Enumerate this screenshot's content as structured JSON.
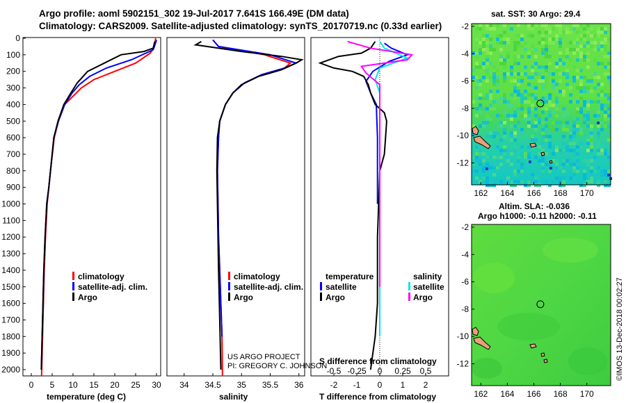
{
  "title": {
    "line1": "Argo profile: aoml 5902151_302 19-Jul-2017 7.641S 166.49E (DM data)",
    "line2": "Climatology: CARS2009. Satellite-adjusted climatology: synTS_20170719.nc (0.33d earlier)"
  },
  "colors": {
    "climatology": "#ff0000",
    "satellite": "#0000ff",
    "argo": "#000000",
    "sat_salinity": "#00e5ee",
    "salinity": "#ff00ff"
  },
  "chart_data": [
    {
      "type": "line",
      "id": "temperature",
      "xlabel": "temperature (deg C)",
      "ylabel": "",
      "xlim": [
        -2,
        31
      ],
      "ylim": [
        2100,
        0
      ],
      "xticks": [
        "0",
        "5",
        "10",
        "15",
        "20",
        "25",
        "30"
      ],
      "yticks": [
        "0",
        "100",
        "200",
        "300",
        "400",
        "500",
        "600",
        "700",
        "800",
        "900",
        "1000",
        "1100",
        "1200",
        "1300",
        "1400",
        "1500",
        "1600",
        "1700",
        "1800",
        "1900",
        "2000"
      ],
      "legend": [
        "climatology",
        "satellite-adj. clim.",
        "Argo"
      ],
      "series": [
        {
          "name": "climatology",
          "color": "#ff0000",
          "x": [
            29.8,
            29.5,
            28.5,
            25.0,
            20.0,
            15.0,
            12.0,
            10.0,
            8.0,
            6.5,
            5.5,
            4.6,
            4.2,
            3.8,
            3.4,
            3.1,
            2.9,
            2.7,
            2.6,
            2.5,
            2.4
          ],
          "y": [
            0,
            50,
            90,
            150,
            200,
            250,
            300,
            350,
            400,
            500,
            600,
            800,
            900,
            1000,
            1200,
            1400,
            1600,
            1800,
            1900,
            2000,
            2100
          ]
        },
        {
          "name": "satellite-adj. clim.",
          "color": "#0000ff",
          "x": [
            30.0,
            29.5,
            29.2,
            24.0,
            18.0,
            14.0,
            11.5,
            9.8,
            8.0,
            6.5,
            5.4,
            4.6,
            4.2,
            3.7,
            3.3,
            3.0,
            2.8,
            2.6,
            2.5,
            2.4
          ],
          "y": [
            10,
            50,
            70,
            130,
            180,
            230,
            280,
            330,
            400,
            500,
            600,
            800,
            900,
            1000,
            1200,
            1400,
            1600,
            1800,
            1900,
            2000
          ]
        },
        {
          "name": "Argo",
          "color": "#000000",
          "x": [
            29.6,
            29.2,
            27.0,
            21.5,
            17.5,
            13.5,
            11.0,
            9.5,
            7.8,
            6.4,
            5.4,
            4.6,
            4.2,
            3.7,
            3.3,
            3.0,
            2.8,
            2.6,
            2.5,
            2.4
          ],
          "y": [
            20,
            60,
            80,
            100,
            150,
            200,
            270,
            330,
            400,
            500,
            600,
            800,
            900,
            1000,
            1200,
            1400,
            1600,
            1800,
            1900,
            2000
          ]
        }
      ]
    },
    {
      "type": "line",
      "id": "salinity",
      "xlabel": "salinity",
      "xlim": [
        33.7,
        36.1
      ],
      "ylim": [
        2100,
        0
      ],
      "xticks": [
        "34",
        "34.5",
        "35",
        "35.5",
        "36"
      ],
      "legend": [
        "climatology",
        "satellite-adj. clim.",
        "Argo"
      ],
      "series": [
        {
          "name": "climatology",
          "color": "#ff0000",
          "x": [
            34.5,
            34.6,
            35.4,
            35.85,
            35.75,
            35.35,
            35.05,
            34.85,
            34.72,
            34.62,
            34.6,
            34.58,
            34.59,
            34.6,
            34.62,
            34.64,
            34.66,
            34.67
          ],
          "y": [
            10,
            50,
            100,
            150,
            180,
            220,
            270,
            330,
            400,
            500,
            600,
            800,
            1000,
            1200,
            1400,
            1600,
            1800,
            2100
          ]
        },
        {
          "name": "satellite-adj. clim.",
          "color": "#0000ff",
          "x": [
            34.5,
            34.6,
            35.5,
            35.95,
            35.75,
            35.35,
            35.05,
            34.85,
            34.72,
            34.62,
            34.6,
            34.58,
            34.59,
            34.6,
            34.62,
            34.64,
            34.66
          ],
          "y": [
            10,
            50,
            100,
            150,
            180,
            220,
            270,
            330,
            400,
            500,
            600,
            800,
            1000,
            1200,
            1400,
            1600,
            1800
          ]
        },
        {
          "name": "Argo",
          "color": "#000000",
          "x": [
            34.3,
            34.2,
            35.0,
            35.7,
            36.05,
            35.95,
            35.7,
            35.3,
            35.0,
            34.85,
            34.72,
            34.62,
            34.58,
            34.57,
            34.58,
            34.6,
            34.62,
            34.64
          ],
          "y": [
            20,
            40,
            80,
            110,
            130,
            150,
            190,
            230,
            280,
            330,
            400,
            500,
            600,
            800,
            1000,
            1400,
            1700,
            2000
          ]
        }
      ],
      "notes": [
        "US ARGO PROJECT",
        "PI: GREGORY C. JOHNSON"
      ]
    },
    {
      "type": "line",
      "id": "differences",
      "xlabel": "T difference from climatology",
      "x2label": "S difference from climatology",
      "xlim": [
        -3,
        3
      ],
      "ylim": [
        2100,
        0
      ],
      "xticks": [
        "-2",
        "-1",
        "0",
        "1",
        "2"
      ],
      "x2ticks": [
        "-0.5",
        "-0.25",
        "0",
        "0.25",
        "0.5"
      ],
      "legend_left_title": "temperature",
      "legend_right_title": "salinity",
      "legend": [
        "satellite",
        "Argo",
        "satellite",
        "Argo"
      ],
      "series": [
        {
          "name": "T satellite",
          "color": "#0000ff",
          "x": [
            0.2,
            0.5,
            1.2,
            0.4,
            -0.3,
            -0.6,
            -0.4,
            -0.15,
            -0.1,
            -0.1
          ],
          "y": [
            30,
            60,
            100,
            140,
            200,
            260,
            330,
            400,
            600,
            1000
          ]
        },
        {
          "name": "T Argo",
          "color": "#000000",
          "x": [
            -0.2,
            -0.4,
            -0.8,
            -1.8,
            -2.6,
            -2.0,
            -1.2,
            -0.7,
            -0.5,
            -0.4,
            -0.2,
            0.2,
            0.3,
            0.25,
            0.2,
            0.0,
            -0.1,
            -0.1,
            -0.2,
            -0.3,
            -0.4
          ],
          "y": [
            20,
            60,
            90,
            110,
            150,
            180,
            200,
            230,
            280,
            330,
            400,
            450,
            500,
            600,
            700,
            800,
            1200,
            1600,
            1800,
            1900,
            2000
          ]
        },
        {
          "name": "S satellite",
          "color": "#00e5ee",
          "x": [
            0.0,
            0.05,
            0.3,
            0.0,
            -0.05,
            0.0,
            0.0,
            0.0
          ],
          "y": [
            20,
            60,
            120,
            180,
            250,
            330,
            600,
            1800
          ]
        },
        {
          "name": "S Argo",
          "color": "#ff00ff",
          "x": [
            -0.35,
            -0.1,
            0.35,
            0.3,
            -0.2,
            -0.15,
            0.0,
            0.0
          ],
          "y": [
            20,
            60,
            100,
            130,
            170,
            210,
            280,
            1500
          ]
        }
      ]
    },
    {
      "type": "heatmap",
      "id": "sst-map",
      "title": "sat. SST: 30 Argo: 29.4",
      "xticks": [
        "162",
        "164",
        "166",
        "168",
        "170"
      ],
      "yticks": [
        "-2",
        "-4",
        "-6",
        "-8",
        "-10",
        "-12"
      ],
      "xlim": [
        161.3,
        171.8
      ],
      "ylim": [
        -13.6,
        -1.8
      ],
      "marker": {
        "lon": 166.49,
        "lat": -7.641
      }
    },
    {
      "type": "heatmap",
      "id": "sla-map",
      "title": "Altim. SLA: -0.036",
      "subtitle": "Argo h1000: -0.11 h2000: -0.11",
      "xticks": [
        "162",
        "164",
        "166",
        "168",
        "170"
      ],
      "yticks": [
        "-2",
        "-4",
        "-6",
        "-8",
        "-10",
        "-12"
      ],
      "xlim": [
        161.3,
        171.8
      ],
      "ylim": [
        -13.6,
        -1.8
      ],
      "marker": {
        "lon": 166.49,
        "lat": -7.641
      }
    }
  ],
  "credit": "©IMOS 13-Dec-2018 00:02:27"
}
